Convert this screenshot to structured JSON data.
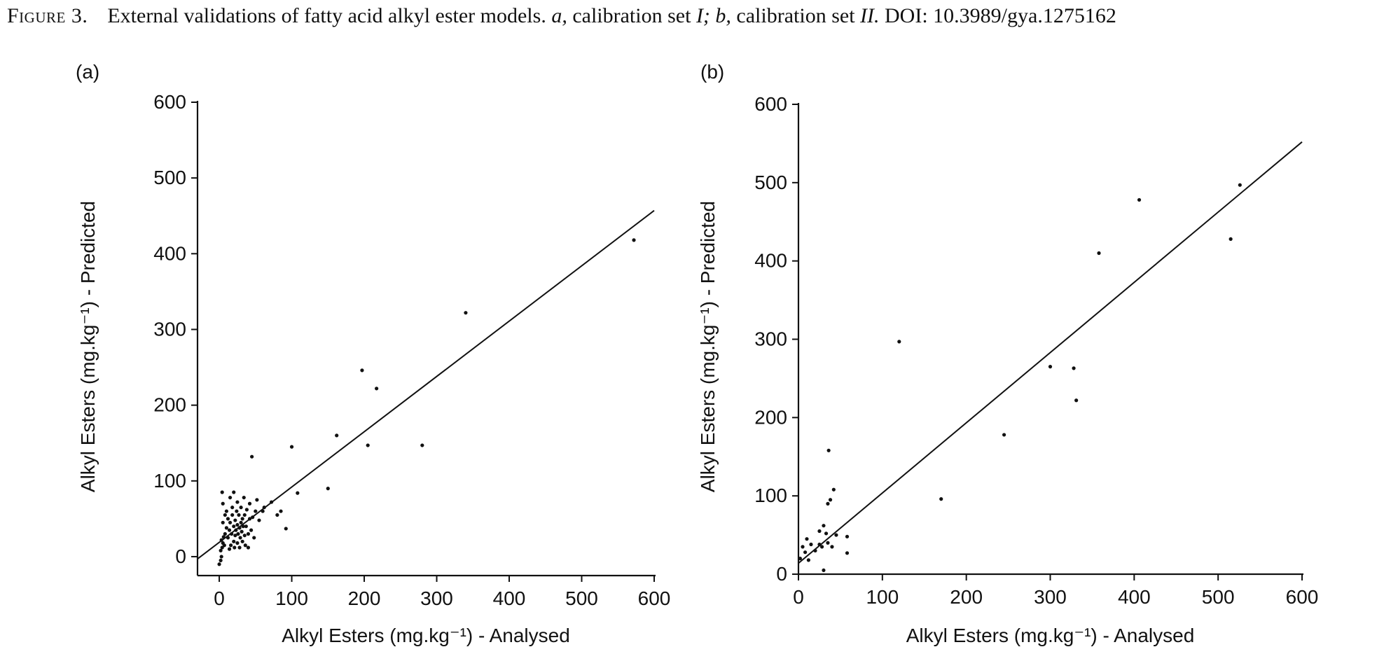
{
  "caption": {
    "label": "Figure 3.",
    "text_a": "External validations of fatty acid alkyl ester models.",
    "sub_a": "a,",
    "text_b": "calibration set",
    "set_a": "I;",
    "sub_b": "b,",
    "text_c": "calibration set",
    "set_b": "II.",
    "doi": "DOI: 10.3989/gya.1275162"
  },
  "chart_data": [
    {
      "type": "scatter",
      "panel_label": "(a)",
      "xlabel": "Alkyl Esters (mg.kg⁻¹) - Analysed",
      "ylabel": "Alkyl Esters (mg.kg⁻¹) - Predicted",
      "xlim": [
        -30,
        600
      ],
      "ylim": [
        -25,
        600
      ],
      "xticks": [
        0,
        100,
        200,
        300,
        400,
        500,
        600
      ],
      "yticks": [
        0,
        100,
        200,
        300,
        400,
        500,
        600
      ],
      "grid": false,
      "fit_line": {
        "x": [
          -30,
          600
        ],
        "y": [
          -3,
          457
        ]
      },
      "points": [
        [
          0,
          -10
        ],
        [
          2,
          -5
        ],
        [
          3,
          0
        ],
        [
          2,
          8
        ],
        [
          4,
          12
        ],
        [
          5,
          18
        ],
        [
          3,
          22
        ],
        [
          6,
          26
        ],
        [
          7,
          15
        ],
        [
          8,
          30
        ],
        [
          5,
          45
        ],
        [
          8,
          55
        ],
        [
          5,
          70
        ],
        [
          4,
          85
        ],
        [
          10,
          38
        ],
        [
          10,
          60
        ],
        [
          12,
          25
        ],
        [
          12,
          50
        ],
        [
          14,
          10
        ],
        [
          14,
          35
        ],
        [
          15,
          78
        ],
        [
          15,
          45
        ],
        [
          16,
          15
        ],
        [
          17,
          30
        ],
        [
          18,
          55
        ],
        [
          18,
          65
        ],
        [
          20,
          20
        ],
        [
          20,
          40
        ],
        [
          20,
          85
        ],
        [
          21,
          12
        ],
        [
          22,
          28
        ],
        [
          22,
          48
        ],
        [
          23,
          35
        ],
        [
          24,
          60
        ],
        [
          25,
          18
        ],
        [
          25,
          42
        ],
        [
          25,
          72
        ],
        [
          26,
          30
        ],
        [
          27,
          55
        ],
        [
          28,
          38
        ],
        [
          28,
          12
        ],
        [
          29,
          25
        ],
        [
          30,
          45
        ],
        [
          30,
          65
        ],
        [
          31,
          33
        ],
        [
          32,
          20
        ],
        [
          32,
          50
        ],
        [
          33,
          40
        ],
        [
          34,
          78
        ],
        [
          35,
          28
        ],
        [
          35,
          55
        ],
        [
          36,
          15
        ],
        [
          37,
          40
        ],
        [
          38,
          62
        ],
        [
          40,
          30
        ],
        [
          40,
          12
        ],
        [
          42,
          50
        ],
        [
          42,
          70
        ],
        [
          44,
          35
        ],
        [
          45,
          132
        ],
        [
          46,
          52
        ],
        [
          48,
          25
        ],
        [
          50,
          60
        ],
        [
          52,
          75
        ],
        [
          55,
          48
        ],
        [
          60,
          60
        ],
        [
          62,
          65
        ],
        [
          72,
          72
        ],
        [
          80,
          55
        ],
        [
          85,
          60
        ],
        [
          92,
          37
        ],
        [
          100,
          145
        ],
        [
          108,
          84
        ],
        [
          150,
          90
        ],
        [
          162,
          160
        ],
        [
          197,
          246
        ],
        [
          205,
          147
        ],
        [
          217,
          222
        ],
        [
          280,
          147
        ],
        [
          340,
          322
        ],
        [
          572,
          418
        ]
      ]
    },
    {
      "type": "scatter",
      "panel_label": "(b)",
      "xlabel": "Alkyl Esters (mg.kg⁻¹) - Analysed",
      "ylabel": "Alkyl Esters (mg.kg⁻¹) - Predicted",
      "xlim": [
        0,
        600
      ],
      "ylim": [
        0,
        600
      ],
      "xticks": [
        0,
        100,
        200,
        300,
        400,
        500,
        600
      ],
      "yticks": [
        0,
        100,
        200,
        300,
        400,
        500,
        600
      ],
      "grid": false,
      "fit_line": {
        "x": [
          0,
          600
        ],
        "y": [
          14,
          552
        ]
      },
      "points": [
        [
          2,
          20
        ],
        [
          5,
          35
        ],
        [
          8,
          28
        ],
        [
          10,
          45
        ],
        [
          12,
          18
        ],
        [
          15,
          38
        ],
        [
          20,
          30
        ],
        [
          25,
          55
        ],
        [
          25,
          38
        ],
        [
          28,
          35
        ],
        [
          30,
          62
        ],
        [
          30,
          5
        ],
        [
          33,
          52
        ],
        [
          35,
          90
        ],
        [
          35,
          40
        ],
        [
          36,
          158
        ],
        [
          38,
          95
        ],
        [
          40,
          35
        ],
        [
          42,
          108
        ],
        [
          45,
          50
        ],
        [
          58,
          48
        ],
        [
          58,
          27
        ],
        [
          120,
          297
        ],
        [
          170,
          96
        ],
        [
          245,
          178
        ],
        [
          300,
          265
        ],
        [
          328,
          263
        ],
        [
          331,
          222
        ],
        [
          358,
          410
        ],
        [
          406,
          478
        ],
        [
          515,
          428
        ],
        [
          526,
          497
        ]
      ]
    }
  ]
}
